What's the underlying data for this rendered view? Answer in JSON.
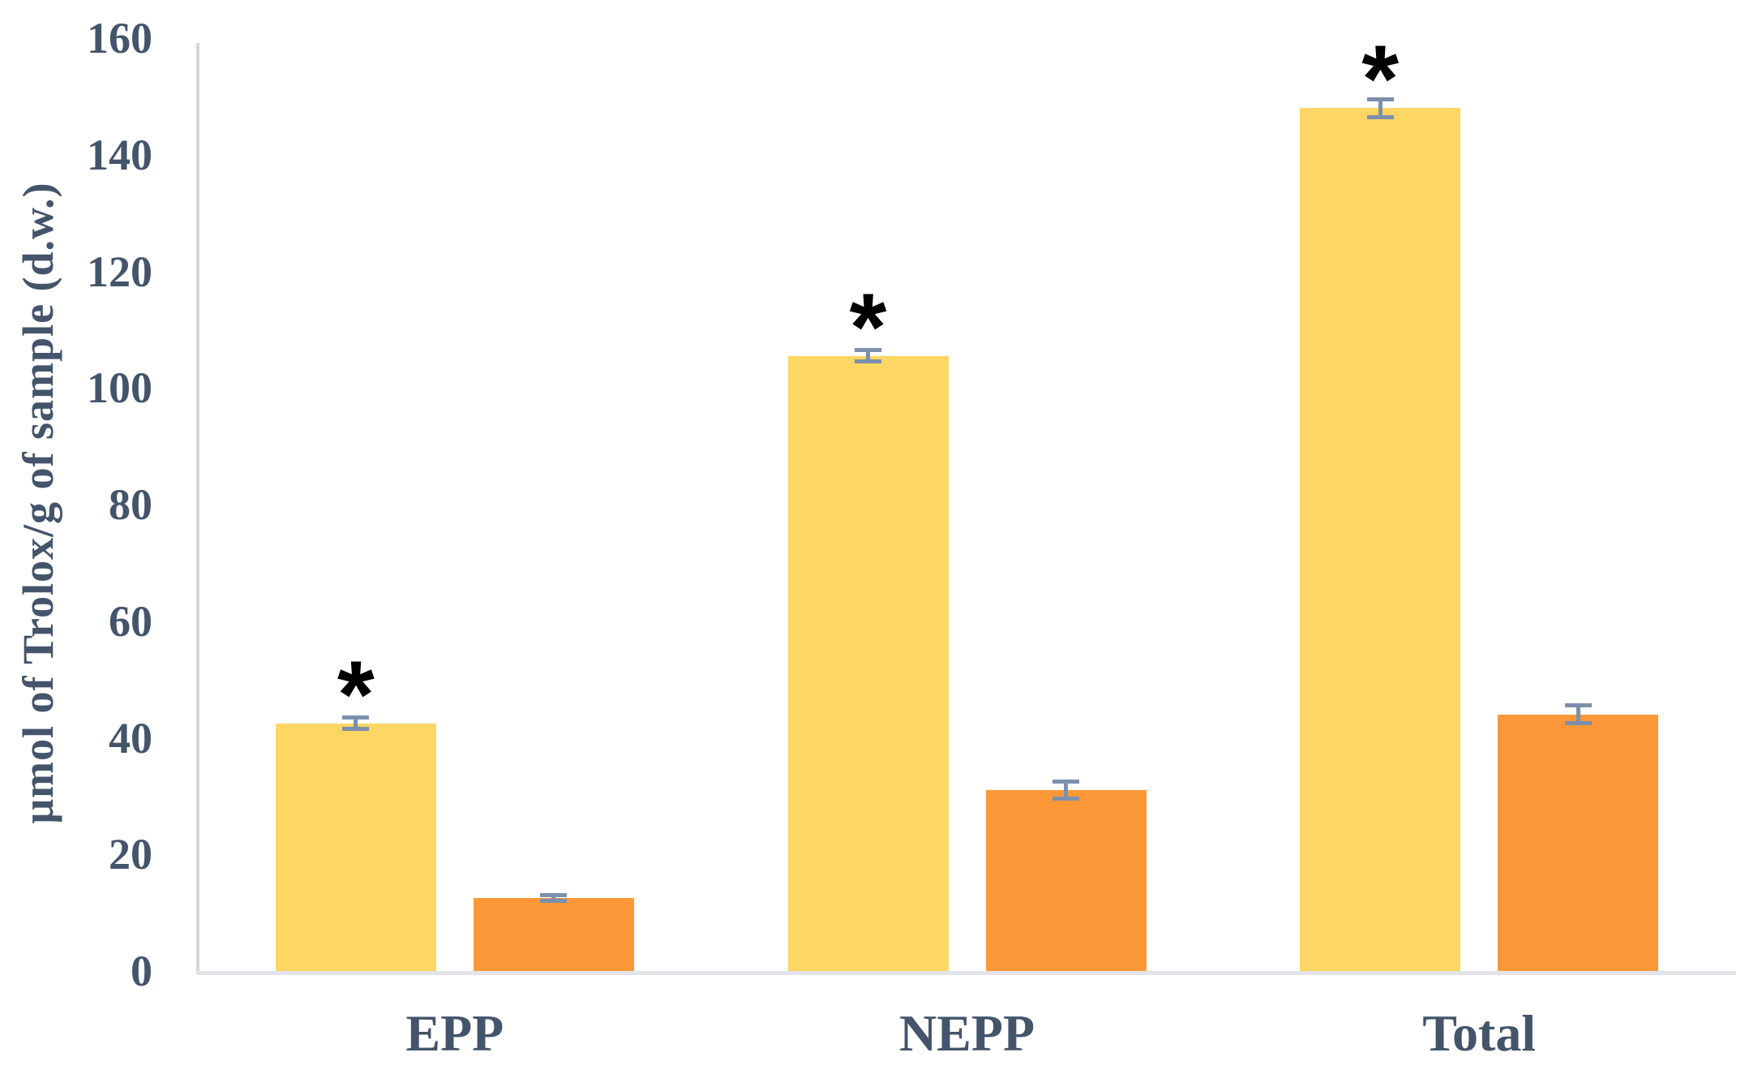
{
  "chart_data": {
    "type": "bar",
    "title": "",
    "xlabel": "",
    "ylabel": "μmol of Trolox/g of sample (d.w.)",
    "categories": [
      "EPP",
      "NEPP",
      "Total"
    ],
    "series": [
      {
        "name": "yellow-bars",
        "color": "#FDD663",
        "values": [
          42.5,
          105.5,
          148
        ],
        "errors": [
          1,
          1,
          1.5
        ],
        "annotations": [
          "*",
          "*",
          "*"
        ]
      },
      {
        "name": "orange-bars",
        "color": "#FC9838",
        "values": [
          12.5,
          31,
          44
        ],
        "errors": [
          0.5,
          1.5,
          1.5
        ],
        "annotations": [
          "",
          "",
          ""
        ]
      }
    ],
    "ylim": [
      0,
      160
    ],
    "yticks": [
      0,
      20,
      40,
      60,
      80,
      100,
      120,
      140,
      160
    ],
    "grid": false,
    "legend": "none"
  },
  "colors": {
    "text": "#44546A",
    "axis_line_vertical": "#D6D6D6",
    "axis_line_horizontal": "#E2E4E9",
    "error_bar": "#7C90AD",
    "annotation": "#000000",
    "background": "#FFFFFF"
  }
}
